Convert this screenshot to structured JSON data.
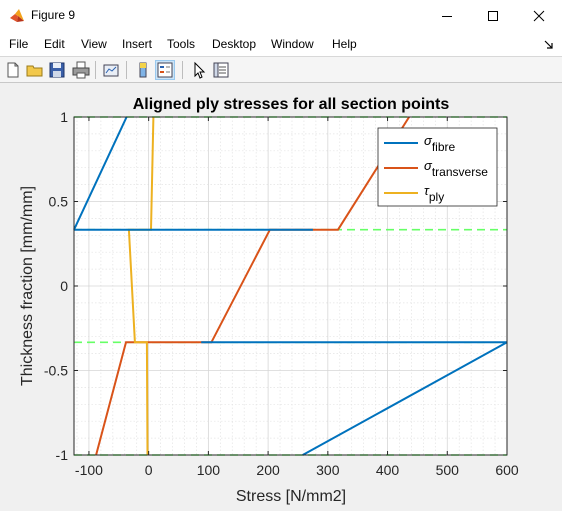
{
  "window": {
    "title": "Figure 9"
  },
  "menu": [
    "File",
    "Edit",
    "View",
    "Insert",
    "Tools",
    "Desktop",
    "Window",
    "Help"
  ],
  "toolbar_icons": [
    "new-figure-icon",
    "open-icon",
    "save-icon",
    "print-icon",
    "link-plot-icon",
    "colorbar-icon",
    "legend-icon",
    "pointer-icon",
    "property-inspector-icon"
  ],
  "chart_data": {
    "type": "line",
    "title": "Aligned ply stresses for all section points",
    "xlabel": "Stress [N/mm2]",
    "ylabel": "Thickness fraction [mm/mm]",
    "xlim": [
      -125,
      600
    ],
    "ylim": [
      -1,
      1
    ],
    "xticks": [
      -100,
      0,
      100,
      200,
      300,
      400,
      500,
      600
    ],
    "yticks": [
      -1,
      -0.5,
      0,
      0.5,
      1
    ],
    "xtick_labels": [
      "-100",
      "0",
      "100",
      "200",
      "300",
      "400",
      "500",
      "600"
    ],
    "ytick_labels": [
      "-1",
      "-0.5",
      "0",
      "0.5",
      "1"
    ],
    "grid": true,
    "minor_grid": true,
    "legend_position": "top-right",
    "legend": [
      {
        "symbol": "σ",
        "sub": "fibre",
        "color": "#0072bd"
      },
      {
        "symbol": "σ",
        "sub": "transverse",
        "color": "#d95319"
      },
      {
        "symbol": "τ",
        "sub": "ply",
        "color": "#edb120"
      }
    ],
    "series": [
      {
        "color": "#0072bd",
        "x": [
          -125,
          -37,
          null,
          -125,
          275,
          null,
          88,
          600,
          null,
          600,
          258
        ],
        "y": [
          0.333,
          1,
          null,
          0.333,
          0.333,
          null,
          -0.333,
          -0.333,
          null,
          -0.333,
          -1
        ]
      },
      {
        "color": "#d95319",
        "x": [
          436,
          317,
          203,
          105,
          -38,
          -88
        ],
        "y": [
          1,
          0.333,
          0.333,
          -0.333,
          -0.333,
          -1
        ]
      },
      {
        "color": "#edb120",
        "x": [
          8,
          4,
          -33,
          -23,
          -3,
          -2
        ],
        "y": [
          1,
          0.333,
          0.333,
          -0.333,
          -0.333,
          -1
        ]
      }
    ],
    "reference_lines": {
      "color": "#66ff66",
      "style": "dashed",
      "y": [
        1,
        0.333,
        -0.333,
        -1
      ]
    }
  }
}
